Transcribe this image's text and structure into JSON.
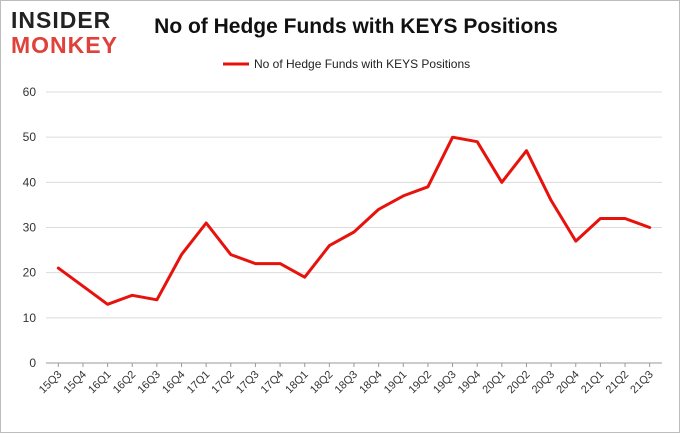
{
  "logo": {
    "line1": "INSIDER",
    "line2": "MONKEY"
  },
  "chart_data": {
    "type": "line",
    "title": "No of Hedge Funds with KEYS Positions",
    "xlabel": "",
    "ylabel": "",
    "categories": [
      "15Q3",
      "15Q4",
      "16Q1",
      "16Q2",
      "16Q3",
      "16Q4",
      "17Q1",
      "17Q2",
      "17Q3",
      "17Q4",
      "18Q1",
      "18Q2",
      "18Q3",
      "18Q4",
      "19Q1",
      "19Q2",
      "19Q3",
      "19Q4",
      "20Q1",
      "20Q2",
      "20Q3",
      "20Q4",
      "21Q1",
      "21Q2",
      "21Q3"
    ],
    "series": [
      {
        "name": "No of Hedge Funds with KEYS Positions",
        "color": "#e8120c",
        "values": [
          21,
          17,
          13,
          15,
          14,
          24,
          31,
          24,
          22,
          22,
          19,
          26,
          29,
          34,
          37,
          39,
          50,
          49,
          40,
          47,
          36,
          27,
          32,
          32,
          30
        ]
      }
    ],
    "ylim": [
      0,
      60
    ],
    "yticks": [
      0,
      10,
      20,
      30,
      40,
      50,
      60
    ],
    "grid": true,
    "legend": "top-center"
  }
}
